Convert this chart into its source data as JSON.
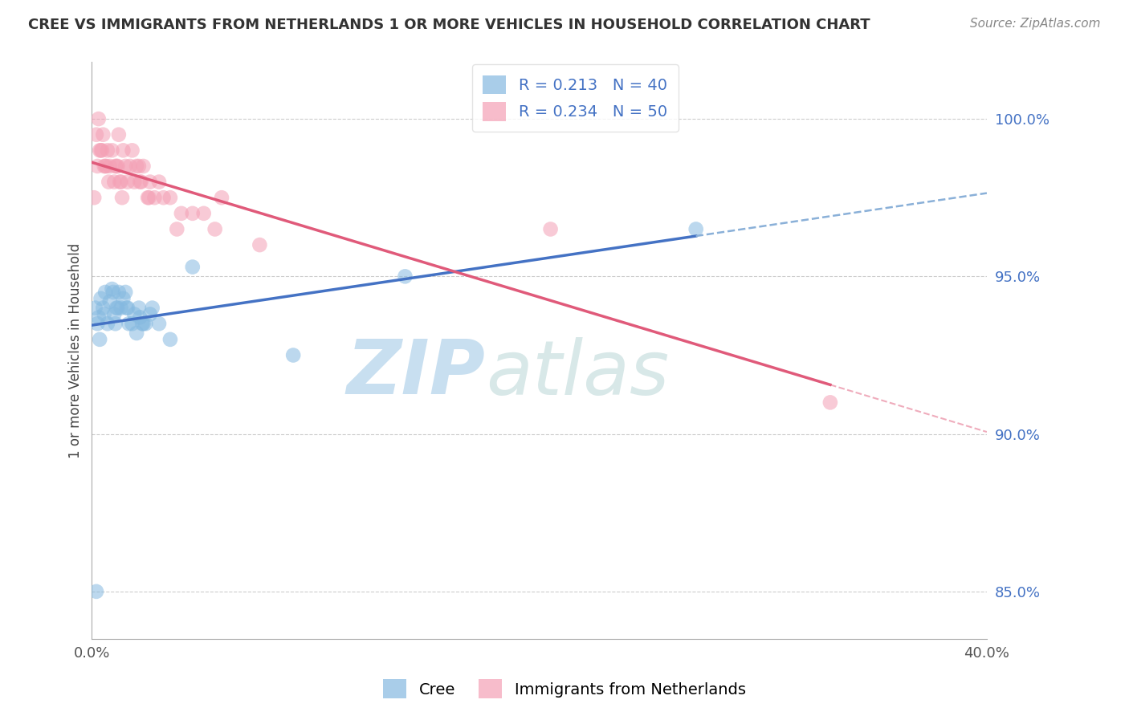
{
  "title": "CREE VS IMMIGRANTS FROM NETHERLANDS 1 OR MORE VEHICLES IN HOUSEHOLD CORRELATION CHART",
  "source": "Source: ZipAtlas.com",
  "xmin": 0.0,
  "xmax": 40.0,
  "ymin": 83.5,
  "ymax": 101.8,
  "yticks": [
    85.0,
    90.0,
    95.0,
    100.0
  ],
  "cree_R": 0.213,
  "cree_N": 40,
  "netherlands_R": 0.234,
  "netherlands_N": 50,
  "cree_color": "#85b9e0",
  "netherlands_color": "#f4a0b5",
  "cree_line_color": "#4472c4",
  "netherlands_line_color": "#e05a7a",
  "cree_line_dash_color": "#8ab0d8",
  "legend_label_cree": "Cree",
  "legend_label_netherlands": "Immigrants from Netherlands",
  "cree_x": [
    0.2,
    0.3,
    0.4,
    0.5,
    0.6,
    0.7,
    0.8,
    0.9,
    1.0,
    1.1,
    1.2,
    1.3,
    1.4,
    1.5,
    1.6,
    1.8,
    1.9,
    2.0,
    2.1,
    2.3,
    2.4,
    2.6,
    2.7,
    3.0,
    3.5,
    0.15,
    0.25,
    1.05,
    1.15,
    1.55,
    1.65,
    2.15,
    2.25,
    4.5,
    9.0,
    14.0,
    27.0,
    0.35,
    0.55,
    0.95
  ],
  "cree_y": [
    85.0,
    93.7,
    94.3,
    94.0,
    94.5,
    93.5,
    94.2,
    94.6,
    93.8,
    94.0,
    94.5,
    94.0,
    94.3,
    94.5,
    94.0,
    93.5,
    93.8,
    93.2,
    94.0,
    93.5,
    93.5,
    93.8,
    94.0,
    93.5,
    93.0,
    94.0,
    93.5,
    93.5,
    94.0,
    94.0,
    93.5,
    93.7,
    93.5,
    95.3,
    92.5,
    95.0,
    96.5,
    93.0,
    93.8,
    94.5
  ],
  "neth_x": [
    0.1,
    0.2,
    0.3,
    0.4,
    0.5,
    0.6,
    0.7,
    0.8,
    0.9,
    1.0,
    1.1,
    1.2,
    1.3,
    1.4,
    1.5,
    1.6,
    1.7,
    1.8,
    1.9,
    2.0,
    2.1,
    2.2,
    2.3,
    2.5,
    2.6,
    2.8,
    3.0,
    3.2,
    3.5,
    4.0,
    4.5,
    5.0,
    5.5,
    7.5,
    0.25,
    0.35,
    0.45,
    0.55,
    0.65,
    0.75,
    1.05,
    1.15,
    1.25,
    1.35,
    2.15,
    2.55,
    3.8,
    20.5,
    5.8,
    33.0
  ],
  "neth_y": [
    97.5,
    99.5,
    100.0,
    99.0,
    99.5,
    98.5,
    99.0,
    98.5,
    99.0,
    98.0,
    98.5,
    99.5,
    98.0,
    99.0,
    98.5,
    98.0,
    98.5,
    99.0,
    98.0,
    98.5,
    98.5,
    98.0,
    98.5,
    97.5,
    98.0,
    97.5,
    98.0,
    97.5,
    97.5,
    97.0,
    97.0,
    97.0,
    96.5,
    96.0,
    98.5,
    99.0,
    99.0,
    98.5,
    98.5,
    98.0,
    98.5,
    98.5,
    98.0,
    97.5,
    98.0,
    97.5,
    96.5,
    96.5,
    97.5,
    91.0
  ],
  "watermark_zip": "ZIP",
  "watermark_atlas": "atlas",
  "background_color": "#ffffff",
  "grid_color": "#cccccc"
}
